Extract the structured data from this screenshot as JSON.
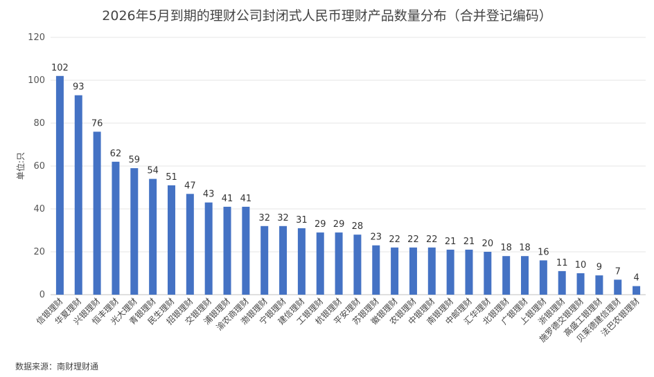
{
  "title": "2026年5月到期的理财公司封闭式人民币理财产品数量分布（合并登记编码）",
  "source": "数据来源：南财理财通",
  "colors": {
    "bar": "#4472C4",
    "grid": "#e6e6e6",
    "axis": "#bfbfbf"
  },
  "chart_data": {
    "type": "bar",
    "title": "2026年5月到期的理财公司封闭式人民币理财产品数量分布（合并登记编码）",
    "ylabel": "单位:只",
    "xlabel": "",
    "ylim": [
      0,
      120
    ],
    "yticks": [
      0,
      20,
      40,
      60,
      80,
      100,
      120
    ],
    "grid": true,
    "categories": [
      "信银理财",
      "华夏理财",
      "兴银理财",
      "恒丰理财",
      "光大理财",
      "青银理财",
      "民生理财",
      "招银理财",
      "交银理财",
      "浦银理财",
      "渝农商理财",
      "渤银理财",
      "宁银理财",
      "建信理财",
      "工银理财",
      "杭银理财",
      "平安理财",
      "苏银理财",
      "徽银理财",
      "农银理财",
      "中银理财",
      "南银理财",
      "中邮理财",
      "汇华理财",
      "北银理财",
      "广银理财",
      "上银理财",
      "浙银理财",
      "施罗德交银理财",
      "高盛工银理财",
      "贝莱德建信理财",
      "法巴农银理财"
    ],
    "values": [
      102,
      93,
      76,
      62,
      59,
      54,
      51,
      47,
      43,
      41,
      41,
      32,
      32,
      31,
      29,
      29,
      28,
      23,
      22,
      22,
      22,
      21,
      21,
      20,
      18,
      18,
      16,
      11,
      10,
      9,
      7,
      4
    ]
  }
}
